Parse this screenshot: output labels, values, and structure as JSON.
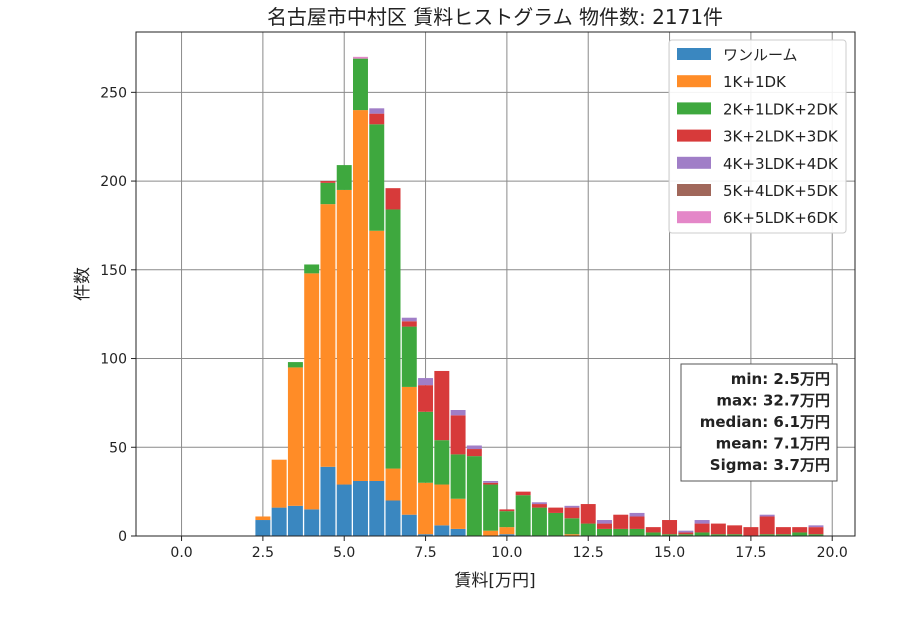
{
  "chart_data": {
    "type": "bar",
    "stacked": true,
    "title": "名古屋市中村区 賃料ヒストグラム 物件数: 2171件",
    "xlabel": "賃料[万円]",
    "ylabel": "件数",
    "xlim": [
      -1.4,
      20.7
    ],
    "ylim": [
      0,
      284
    ],
    "x_ticks": [
      0.0,
      2.5,
      5.0,
      7.5,
      10.0,
      12.5,
      15.0,
      17.5,
      20.0
    ],
    "x_tick_labels": [
      "0.0",
      "2.5",
      "5.0",
      "7.5",
      "10.0",
      "12.5",
      "15.0",
      "17.5",
      "20.0"
    ],
    "y_ticks": [
      0,
      50,
      100,
      150,
      200,
      250
    ],
    "y_tick_labels": [
      "0",
      "50",
      "100",
      "150",
      "200",
      "250"
    ],
    "grid": true,
    "legend_position": "top-right",
    "bin_width": 0.5,
    "x": [
      2.5,
      3.0,
      3.5,
      4.0,
      4.5,
      5.0,
      5.5,
      6.0,
      6.5,
      7.0,
      7.5,
      8.0,
      8.5,
      9.0,
      9.5,
      10.0,
      10.5,
      11.0,
      11.5,
      12.0,
      12.5,
      13.0,
      13.5,
      14.0,
      14.5,
      15.0,
      15.5,
      16.0,
      16.5,
      17.0,
      17.5,
      18.0,
      18.5,
      19.0,
      19.5
    ],
    "series": [
      {
        "name": "ワンルーム",
        "color": "#3a87c0",
        "values": [
          9,
          16,
          17,
          15,
          39,
          29,
          31,
          31,
          20,
          12,
          1,
          6,
          4,
          0,
          0,
          1,
          0,
          0,
          0,
          0,
          0,
          0,
          0,
          0,
          0,
          0,
          0,
          0,
          0,
          0,
          0,
          0,
          0,
          0,
          0
        ]
      },
      {
        "name": "1K+1DK",
        "color": "#ff8c27",
        "values": [
          2,
          27,
          78,
          133,
          148,
          166,
          209,
          141,
          18,
          72,
          29,
          23,
          17,
          0,
          3,
          4,
          0,
          0,
          0,
          1,
          0,
          0,
          0,
          0,
          0,
          0,
          0,
          0,
          0,
          0,
          0,
          0,
          0,
          0,
          0
        ]
      },
      {
        "name": "2K+1LDK+2DK",
        "color": "#3ea83e",
        "values": [
          0,
          0,
          3,
          5,
          12,
          14,
          29,
          60,
          146,
          34,
          40,
          25,
          25,
          45,
          26,
          9,
          23,
          16,
          13,
          9,
          7,
          4,
          4,
          4,
          2,
          1,
          1,
          2,
          1,
          1,
          0,
          1,
          1,
          2,
          1
        ]
      },
      {
        "name": "3K+2LDK+3DK",
        "color": "#d73a3a",
        "values": [
          0,
          0,
          0,
          0,
          1,
          0,
          0,
          6,
          12,
          3,
          15,
          39,
          22,
          4,
          1,
          1,
          2,
          2,
          3,
          6,
          11,
          3,
          8,
          7,
          3,
          8,
          1,
          5,
          6,
          5,
          5,
          10,
          4,
          3,
          4
        ]
      },
      {
        "name": "4K+3LDK+4DK",
        "color": "#a07ec7",
        "values": [
          0,
          0,
          0,
          0,
          0,
          0,
          0,
          3,
          0,
          2,
          4,
          0,
          3,
          2,
          1,
          0,
          0,
          1,
          0,
          1,
          0,
          2,
          0,
          2,
          0,
          0,
          1,
          2,
          0,
          0,
          0,
          1,
          0,
          0,
          1
        ]
      },
      {
        "name": "5K+4LDK+5DK",
        "color": "#a0675a",
        "values": [
          0,
          0,
          0,
          0,
          0,
          0,
          0,
          0,
          0,
          0,
          0,
          0,
          0,
          0,
          0,
          0,
          0,
          0,
          0,
          0,
          0,
          0,
          0,
          0,
          0,
          0,
          0,
          0,
          0,
          0,
          0,
          0,
          0,
          0,
          0
        ]
      },
      {
        "name": "6K+5LDK+6DK",
        "color": "#e487c8",
        "values": [
          0,
          0,
          0,
          0,
          0,
          0,
          1,
          0,
          0,
          0,
          0,
          0,
          0,
          0,
          0,
          0,
          0,
          0,
          0,
          0,
          0,
          0,
          0,
          0,
          0,
          0,
          0,
          0,
          0,
          0,
          0,
          0,
          0,
          0,
          0
        ]
      }
    ],
    "stats": [
      "min: 2.5万円",
      "max: 32.7万円",
      "median: 6.1万円",
      "mean: 7.1万円",
      "Sigma: 3.7万円"
    ]
  }
}
